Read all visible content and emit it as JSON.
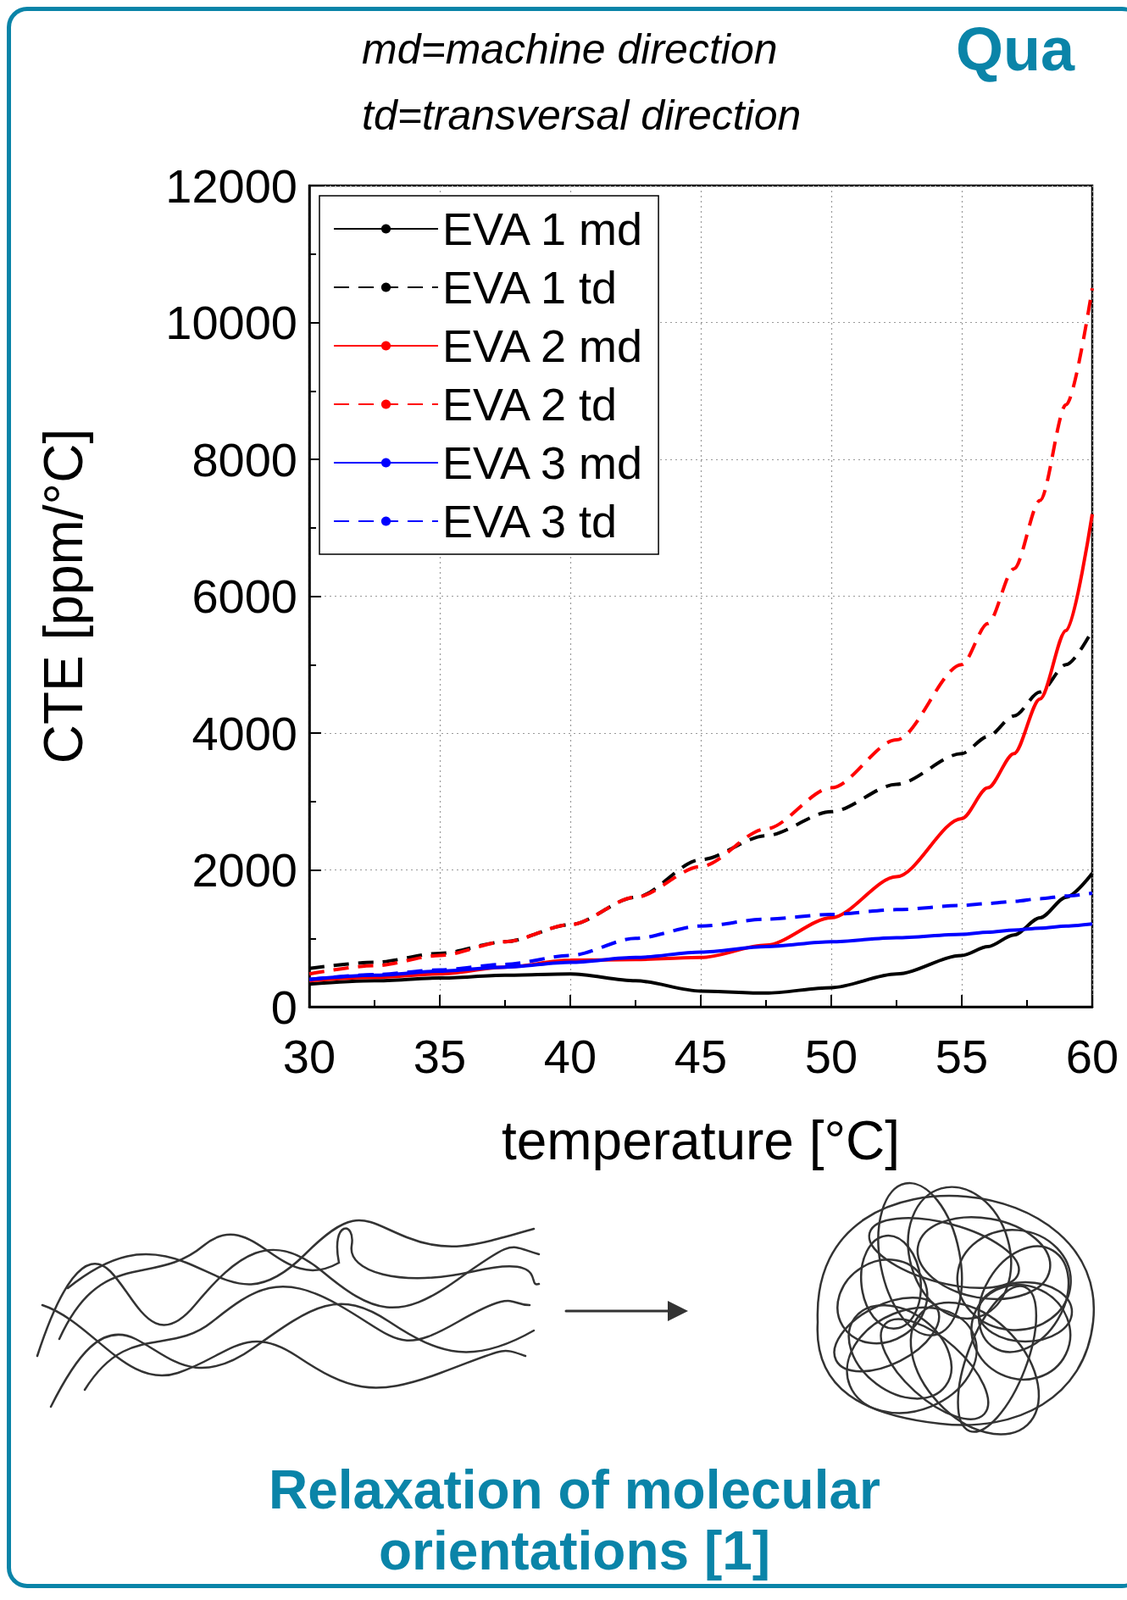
{
  "chart_data": {
    "type": "line",
    "title": "Qua",
    "annotations": [
      "md=machine direction",
      "td=transversal direction"
    ],
    "caption": "Relaxation of molecular orientations [1]",
    "x_label": "temperature [°C]",
    "y_label": "CTE [ppm/°C]",
    "x": [
      30,
      32.5,
      35,
      37.5,
      40,
      42.5,
      45,
      47.5,
      50,
      52.5,
      55,
      56,
      57,
      58,
      59,
      60
    ],
    "series": [
      {
        "name": "EVA 1 md",
        "color": "#000000",
        "line_style": "solid",
        "values": [
          330,
          380,
          420,
          460,
          480,
          380,
          230,
          200,
          280,
          480,
          750,
          880,
          1050,
          1300,
          1600,
          1950
        ]
      },
      {
        "name": "EVA 1 td",
        "color": "#000000",
        "line_style": "dashed",
        "values": [
          560,
          650,
          780,
          950,
          1200,
          1600,
          2150,
          2500,
          2850,
          3250,
          3700,
          3950,
          4250,
          4600,
          5000,
          5500
        ]
      },
      {
        "name": "EVA 2 md",
        "color": "#ff0000",
        "line_style": "solid",
        "values": [
          380,
          430,
          480,
          580,
          680,
          690,
          720,
          900,
          1300,
          1900,
          2750,
          3200,
          3700,
          4500,
          5500,
          7200
        ]
      },
      {
        "name": "EVA 2 td",
        "color": "#ff0000",
        "line_style": "dashed",
        "values": [
          480,
          600,
          750,
          950,
          1200,
          1600,
          2050,
          2600,
          3200,
          3900,
          5000,
          5600,
          6400,
          7400,
          8800,
          10500
        ]
      },
      {
        "name": "EVA 3 md",
        "color": "#0000ff",
        "line_style": "solid",
        "values": [
          400,
          460,
          520,
          580,
          650,
          720,
          800,
          880,
          950,
          1010,
          1060,
          1090,
          1120,
          1150,
          1180,
          1210
        ]
      },
      {
        "name": "EVA 3 td",
        "color": "#0000ff",
        "line_style": "dashed",
        "values": [
          400,
          470,
          540,
          620,
          750,
          1000,
          1180,
          1280,
          1350,
          1420,
          1480,
          1510,
          1540,
          1580,
          1620,
          1660
        ]
      }
    ],
    "xlim": [
      30,
      60
    ],
    "xticks": [
      30,
      35,
      40,
      45,
      50,
      55,
      60
    ],
    "ylim": [
      0,
      12000
    ],
    "yticks": [
      0,
      2000,
      4000,
      6000,
      8000,
      10000,
      12000
    ],
    "grid": true,
    "legend": "top-left"
  }
}
